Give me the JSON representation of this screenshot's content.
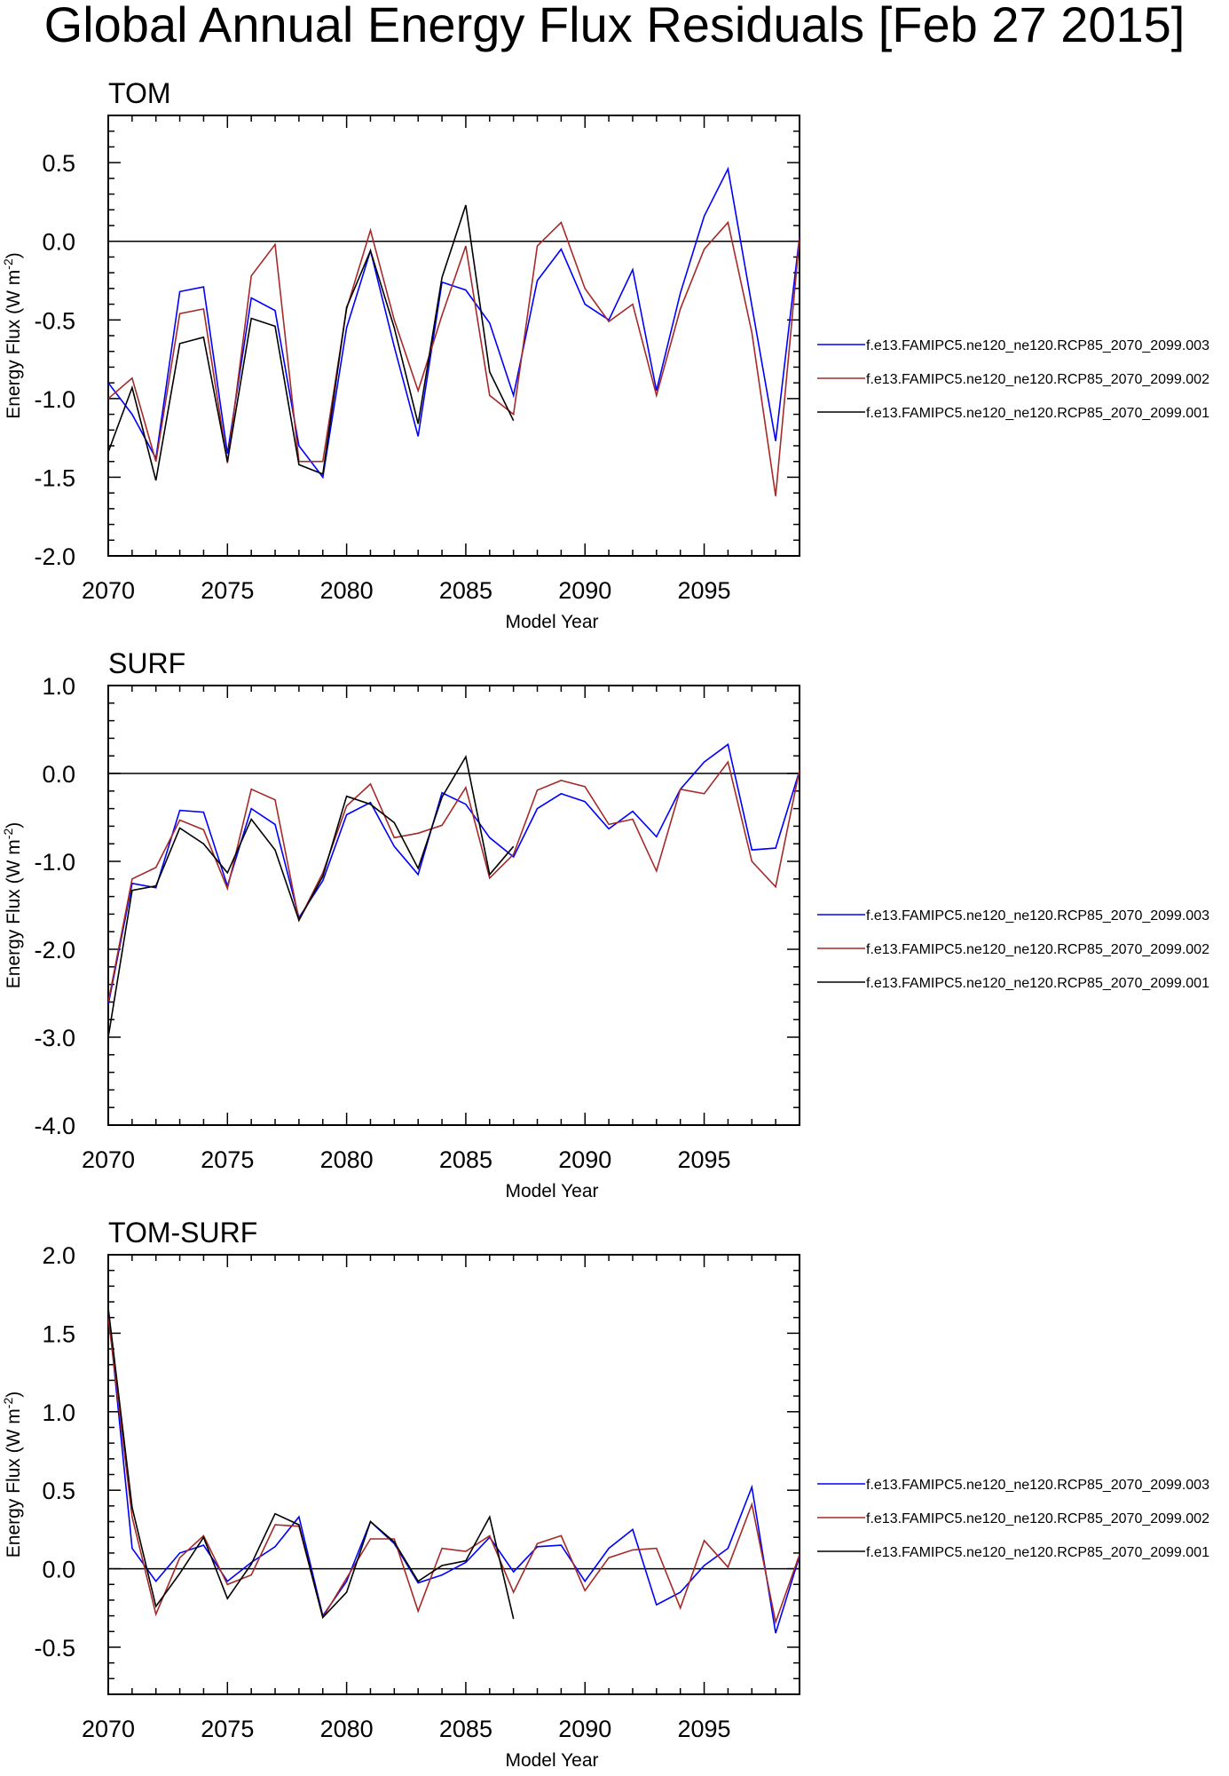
{
  "title": "Global Annual Energy Flux Residuals [Feb 27 2015]",
  "colors": {
    "series": [
      "#0000ff",
      "#a52a2a",
      "#000000"
    ]
  },
  "chart_data": [
    {
      "type": "line",
      "title": "TOM",
      "xlabel": "Model Year",
      "ylabel_main": "Energy Flux (W m",
      "ylabel_sup": "-2",
      "ylabel_close": ")",
      "xlim": [
        2070,
        2099
      ],
      "ylim": [
        -2.0,
        0.8
      ],
      "xticks": [
        2070,
        2075,
        2080,
        2085,
        2090,
        2095
      ],
      "xtick_labels": [
        "2070",
        "2075",
        "2080",
        "2085",
        "2090",
        "2095"
      ],
      "yticks": [
        -2.0,
        -1.5,
        -1.0,
        -0.5,
        0.0,
        0.5
      ],
      "ytick_labels": [
        "-2.0",
        "-1.5",
        "-1.0",
        "-0.5",
        "0.0",
        "0.5"
      ],
      "reference_line": 0,
      "x": [
        2070,
        2071,
        2072,
        2073,
        2074,
        2075,
        2076,
        2077,
        2078,
        2079,
        2080,
        2081,
        2082,
        2083,
        2084,
        2085,
        2086,
        2087,
        2088,
        2089,
        2090,
        2091,
        2092,
        2093,
        2094,
        2095,
        2096,
        2097,
        2098,
        2099
      ],
      "series": [
        {
          "name": "f.e13.FAMIPC5.ne120_ne120.RCP85_2070_2099.003",
          "values": [
            -0.9,
            -1.1,
            -1.38,
            -0.32,
            -0.29,
            -1.35,
            -0.36,
            -0.44,
            -1.3,
            -1.5,
            -0.55,
            -0.06,
            -0.67,
            -1.24,
            -0.26,
            -0.31,
            -0.52,
            -0.98,
            -0.25,
            -0.05,
            -0.4,
            -0.5,
            -0.18,
            -0.95,
            -0.33,
            0.16,
            0.46,
            -0.41,
            -1.27,
            0.03
          ]
        },
        {
          "name": "f.e13.FAMIPC5.ne120_ne120.RCP85_2070_2099.002",
          "values": [
            -1.0,
            -0.87,
            -1.4,
            -0.46,
            -0.43,
            -1.41,
            -0.22,
            -0.02,
            -1.4,
            -1.4,
            -0.43,
            0.07,
            -0.5,
            -0.95,
            -0.47,
            -0.03,
            -0.98,
            -1.1,
            -0.03,
            0.12,
            -0.3,
            -0.51,
            -0.4,
            -0.98,
            -0.43,
            -0.05,
            0.12,
            -0.58,
            -1.62,
            0.02
          ]
        },
        {
          "name": "f.e13.FAMIPC5.ne120_ne120.RCP85_2070_2099.001",
          "values": [
            -1.34,
            -0.93,
            -1.52,
            -0.65,
            -0.61,
            -1.4,
            -0.49,
            -0.54,
            -1.42,
            -1.48,
            -0.42,
            -0.06,
            -0.55,
            -1.16,
            -0.23,
            0.23,
            -0.83,
            -1.14,
            null,
            null,
            null,
            null,
            null,
            null,
            null,
            null,
            null,
            null,
            null,
            null
          ]
        }
      ]
    },
    {
      "type": "line",
      "title": "SURF",
      "xlabel": "Model Year",
      "ylabel_main": "Energy Flux (W m",
      "ylabel_sup": "-2",
      "ylabel_close": ")",
      "xlim": [
        2070,
        2099
      ],
      "ylim": [
        -4.0,
        1.0
      ],
      "xticks": [
        2070,
        2075,
        2080,
        2085,
        2090,
        2095
      ],
      "xtick_labels": [
        "2070",
        "2075",
        "2080",
        "2085",
        "2090",
        "2095"
      ],
      "yticks": [
        -4.0,
        -3.0,
        -2.0,
        -1.0,
        0.0,
        1.0
      ],
      "ytick_labels": [
        "-4.0",
        "-3.0",
        "-2.0",
        "-1.0",
        "0.0",
        "1.0"
      ],
      "reference_line": 0,
      "x": [
        2070,
        2071,
        2072,
        2073,
        2074,
        2075,
        2076,
        2077,
        2078,
        2079,
        2080,
        2081,
        2082,
        2083,
        2084,
        2085,
        2086,
        2087,
        2088,
        2089,
        2090,
        2091,
        2092,
        2093,
        2094,
        2095,
        2096,
        2097,
        2098,
        2099
      ],
      "series": [
        {
          "name": "f.e13.FAMIPC5.ne120_ne120.RCP85_2070_2099.003",
          "values": [
            -2.63,
            -1.25,
            -1.3,
            -0.42,
            -0.44,
            -1.28,
            -0.4,
            -0.58,
            -1.64,
            -1.22,
            -0.47,
            -0.33,
            -0.83,
            -1.15,
            -0.22,
            -0.35,
            -0.73,
            -0.95,
            -0.4,
            -0.23,
            -0.32,
            -0.63,
            -0.43,
            -0.72,
            -0.18,
            0.13,
            0.33,
            -0.87,
            -0.85,
            0.03
          ]
        },
        {
          "name": "f.e13.FAMIPC5.ne120_ne120.RCP85_2070_2099.002",
          "values": [
            -2.6,
            -1.2,
            -1.07,
            -0.53,
            -0.64,
            -1.31,
            -0.18,
            -0.3,
            -1.67,
            -1.13,
            -0.37,
            -0.12,
            -0.73,
            -0.68,
            -0.59,
            -0.16,
            -1.19,
            -0.92,
            -0.19,
            -0.08,
            -0.15,
            -0.58,
            -0.52,
            -1.11,
            -0.18,
            -0.23,
            0.13,
            -1.0,
            -1.29,
            0.04
          ]
        },
        {
          "name": "f.e13.FAMIPC5.ne120_ne120.RCP85_2070_2099.001",
          "values": [
            -3.0,
            -1.33,
            -1.28,
            -0.62,
            -0.8,
            -1.13,
            -0.52,
            -0.87,
            -1.67,
            -1.17,
            -0.26,
            -0.35,
            -0.56,
            -1.08,
            -0.27,
            0.19,
            -1.15,
            -0.83,
            null,
            null,
            null,
            null,
            null,
            null,
            null,
            null,
            null,
            null,
            null,
            null
          ]
        }
      ]
    },
    {
      "type": "line",
      "title": "TOM-SURF",
      "xlabel": "Model Year",
      "ylabel_main": "Energy Flux (W m",
      "ylabel_sup": "-2",
      "ylabel_close": ")",
      "xlim": [
        2070,
        2099
      ],
      "ylim": [
        -0.8,
        2.0
      ],
      "xticks": [
        2070,
        2075,
        2080,
        2085,
        2090,
        2095
      ],
      "xtick_labels": [
        "2070",
        "2075",
        "2080",
        "2085",
        "2090",
        "2095"
      ],
      "yticks": [
        -0.5,
        0.0,
        0.5,
        1.0,
        1.5,
        2.0
      ],
      "ytick_labels": [
        "-0.5",
        "0.0",
        "0.5",
        "1.0",
        "1.5",
        "2.0"
      ],
      "reference_line": 0,
      "x": [
        2070,
        2071,
        2072,
        2073,
        2074,
        2075,
        2076,
        2077,
        2078,
        2079,
        2080,
        2081,
        2082,
        2083,
        2084,
        2085,
        2086,
        2087,
        2088,
        2089,
        2090,
        2091,
        2092,
        2093,
        2094,
        2095,
        2096,
        2097,
        2098,
        2099
      ],
      "series": [
        {
          "name": "f.e13.FAMIPC5.ne120_ne120.RCP85_2070_2099.003",
          "values": [
            1.65,
            0.13,
            -0.08,
            0.1,
            0.15,
            -0.08,
            0.04,
            0.14,
            0.33,
            -0.3,
            -0.08,
            0.3,
            0.16,
            -0.09,
            -0.04,
            0.04,
            0.2,
            -0.02,
            0.14,
            0.15,
            -0.08,
            0.13,
            0.25,
            -0.23,
            -0.15,
            0.02,
            0.13,
            0.52,
            -0.41,
            0.08
          ]
        },
        {
          "name": "f.e13.FAMIPC5.ne120_ne120.RCP85_2070_2099.002",
          "values": [
            1.6,
            0.33,
            -0.29,
            0.07,
            0.21,
            -0.1,
            -0.04,
            0.28,
            0.27,
            -0.31,
            -0.06,
            0.19,
            0.19,
            -0.27,
            0.13,
            0.11,
            0.21,
            -0.15,
            0.16,
            0.21,
            -0.14,
            0.07,
            0.12,
            0.13,
            -0.25,
            0.18,
            0.01,
            0.41,
            -0.34,
            0.09
          ]
        },
        {
          "name": "f.e13.FAMIPC5.ne120_ne120.RCP85_2070_2099.001",
          "values": [
            1.66,
            0.39,
            -0.24,
            -0.03,
            0.2,
            -0.19,
            0.03,
            0.35,
            0.28,
            -0.31,
            -0.15,
            0.3,
            0.17,
            -0.08,
            0.02,
            0.05,
            0.33,
            -0.32,
            null,
            null,
            null,
            null,
            null,
            null,
            null,
            null,
            null,
            null,
            null,
            null
          ]
        }
      ]
    }
  ]
}
